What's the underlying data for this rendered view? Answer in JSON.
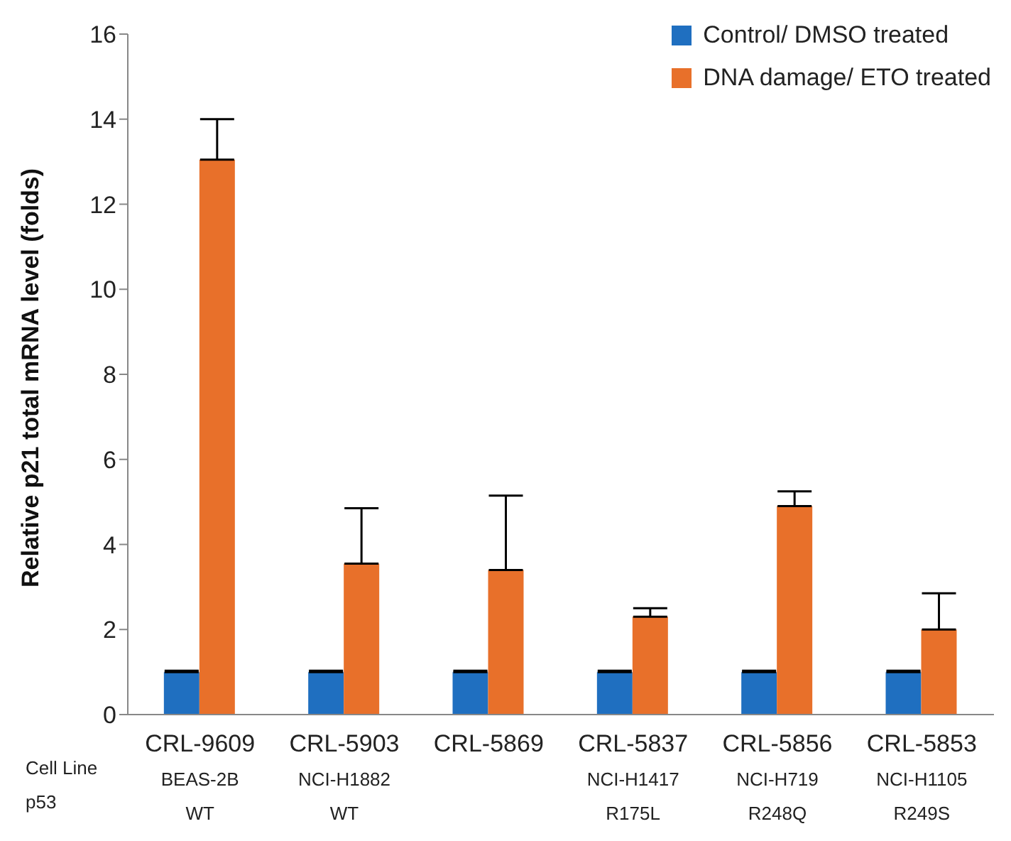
{
  "chart_data": {
    "type": "bar",
    "ylabel": "Relative p21 total mRNA level (folds)",
    "categories": [
      "CRL-9609\nBEAS-2B\nWT",
      "CRL-5903\nNCI-H1882\nWT",
      "CRL-5869",
      "CRL-5837\nNCI-H1417\nR175L",
      "CRL-5856\nNCI-H719\nR248Q",
      "CRL-5853\nNCI-H1105\nR249S"
    ],
    "series": [
      {
        "name": "Control/ DMSO treated",
        "color": "#1f6fc0",
        "values": [
          1.0,
          1.0,
          1.0,
          1.0,
          1.0,
          1.0
        ],
        "errors": [
          [
            1.0,
            1.03
          ],
          [
            1.0,
            1.03
          ],
          [
            1.0,
            1.03
          ],
          [
            1.0,
            1.03
          ],
          [
            1.0,
            1.03
          ],
          [
            1.0,
            1.03
          ]
        ]
      },
      {
        "name": "DNA damage/ ETO treated",
        "color": "#e8702a",
        "values": [
          13.05,
          3.55,
          3.4,
          2.3,
          4.9,
          2.0
        ],
        "errors": [
          [
            13.05,
            14.0
          ],
          [
            3.55,
            4.85
          ],
          [
            3.4,
            5.15
          ],
          [
            2.3,
            2.5
          ],
          [
            4.9,
            5.25
          ],
          [
            2.0,
            2.85
          ]
        ]
      }
    ],
    "annotations": [
      "Cell Line",
      "p53"
    ],
    "ylim": [
      0,
      16
    ],
    "yticks": [
      0,
      2,
      4,
      6,
      8,
      10,
      12,
      14,
      16
    ],
    "grid": false,
    "legend": "top right"
  }
}
